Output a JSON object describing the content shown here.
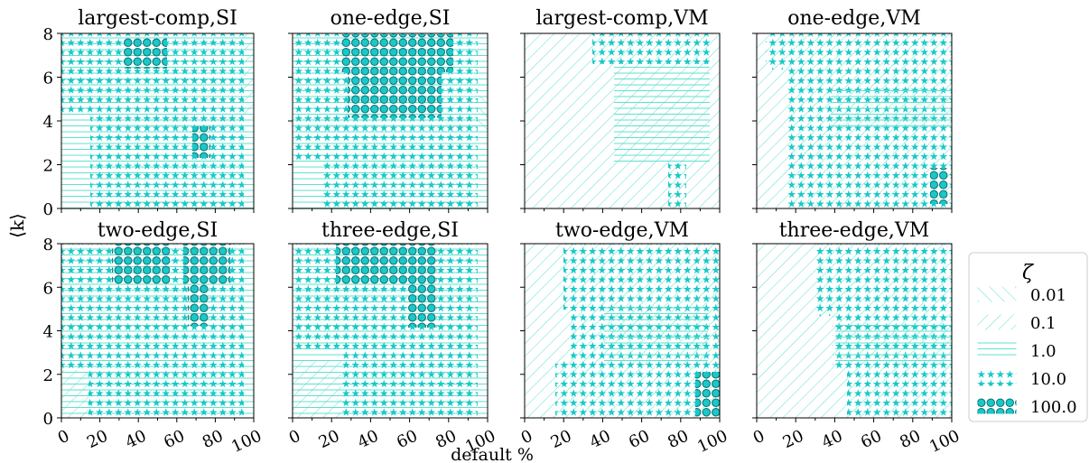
{
  "figure": {
    "xlabel": "default %",
    "ylabel": "⟨k⟩",
    "legend": {
      "title": "ζ",
      "placement": "right",
      "entries": [
        {
          "label": "0.01",
          "pattern": "back-diagonal"
        },
        {
          "label": "0.1",
          "pattern": "diagonal"
        },
        {
          "label": "1.0",
          "pattern": "horizontal"
        },
        {
          "label": "10.0",
          "pattern": "stars"
        },
        {
          "label": "100.0",
          "pattern": "circles"
        }
      ]
    },
    "colors": {
      "hatch": "#19c8c8",
      "hatch_light": "#5fe0d0",
      "circle_edge": "#0b6e6e"
    }
  },
  "chart_data": [
    {
      "type": "heatmap",
      "title": "largest-comp,SI",
      "xlim": [
        0,
        100
      ],
      "ylim": [
        0,
        8
      ],
      "xticks": [
        "0",
        "20",
        "40",
        "60",
        "80",
        "100"
      ],
      "yticks": [
        "0",
        "2",
        "4",
        "6",
        "8"
      ]
    },
    {
      "type": "heatmap",
      "title": "one-edge,SI",
      "xlim": [
        0,
        100
      ],
      "ylim": [
        0,
        8
      ],
      "xticks": [
        "0",
        "20",
        "40",
        "60",
        "80",
        "100"
      ],
      "yticks": [
        "0",
        "2",
        "4",
        "6",
        "8"
      ]
    },
    {
      "type": "heatmap",
      "title": "largest-comp,VM",
      "xlim": [
        0,
        100
      ],
      "ylim": [
        0,
        8
      ],
      "xticks": [
        "0",
        "20",
        "40",
        "60",
        "80",
        "100"
      ],
      "yticks": [
        "0",
        "2",
        "4",
        "6",
        "8"
      ]
    },
    {
      "type": "heatmap",
      "title": "one-edge,VM",
      "xlim": [
        0,
        100
      ],
      "ylim": [
        0,
        8
      ],
      "xticks": [
        "0",
        "20",
        "40",
        "60",
        "80",
        "100"
      ],
      "yticks": [
        "0",
        "2",
        "4",
        "6",
        "8"
      ]
    },
    {
      "type": "heatmap",
      "title": "two-edge,SI",
      "xlim": [
        0,
        100
      ],
      "ylim": [
        0,
        8
      ],
      "xticks": [
        "0",
        "20",
        "40",
        "60",
        "80",
        "100"
      ],
      "yticks": [
        "0",
        "2",
        "4",
        "6",
        "8"
      ]
    },
    {
      "type": "heatmap",
      "title": "three-edge,SI",
      "xlim": [
        0,
        100
      ],
      "ylim": [
        0,
        8
      ],
      "xticks": [
        "0",
        "20",
        "40",
        "60",
        "80",
        "100"
      ],
      "yticks": [
        "0",
        "2",
        "4",
        "6",
        "8"
      ]
    },
    {
      "type": "heatmap",
      "title": "two-edge,VM",
      "xlim": [
        0,
        100
      ],
      "ylim": [
        0,
        8
      ],
      "xticks": [
        "0",
        "20",
        "40",
        "60",
        "80",
        "100"
      ],
      "yticks": [
        "0",
        "2",
        "4",
        "6",
        "8"
      ]
    },
    {
      "type": "heatmap",
      "title": "three-edge,VM",
      "xlim": [
        0,
        100
      ],
      "ylim": [
        0,
        8
      ],
      "xticks": [
        "0",
        "20",
        "40",
        "60",
        "80",
        "100"
      ],
      "yticks": [
        "0",
        "2",
        "4",
        "6",
        "8"
      ]
    }
  ]
}
